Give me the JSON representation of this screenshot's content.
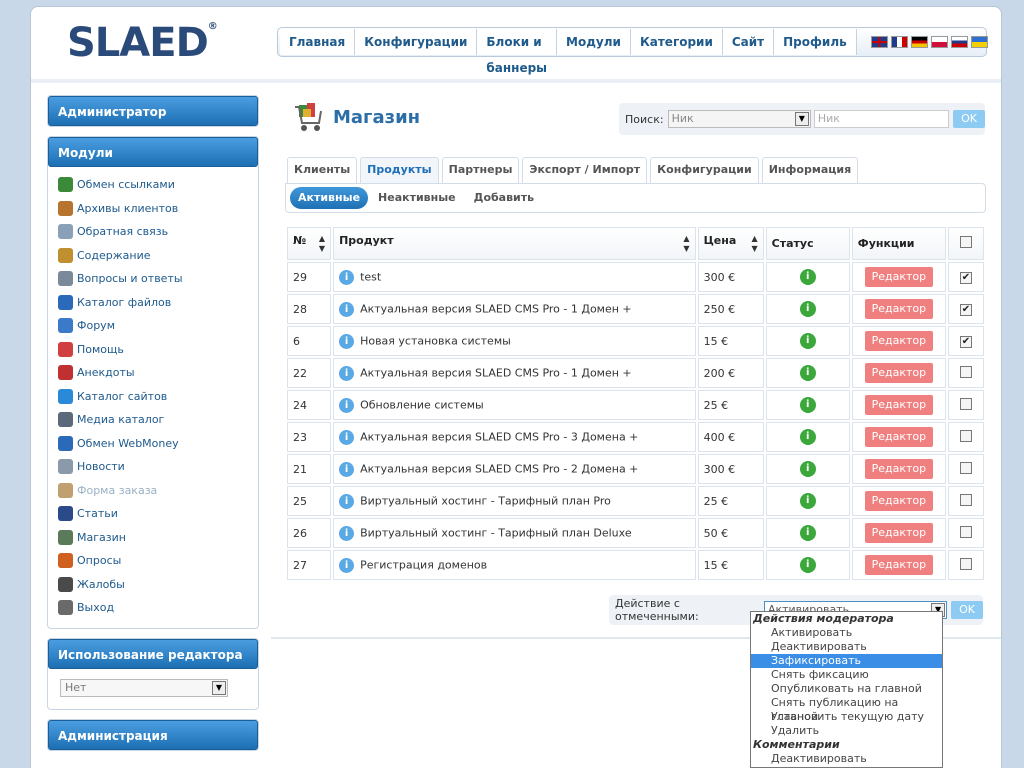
{
  "logo": {
    "text": "SLAED",
    "reg": "®"
  },
  "topnav": [
    "Главная",
    "Конфигурации",
    "Блоки и баннеры",
    "Модули",
    "Категории",
    "Сайт",
    "Профиль"
  ],
  "languages": [
    "English",
    "Français",
    "Deutsch",
    "Polski",
    "Русский",
    "Українська"
  ],
  "sidebar": {
    "admin_title": "Администратор",
    "modules_title": "Модули",
    "modules": [
      {
        "label": "Обмен ссылками",
        "icon": "globe-icon",
        "color": "#3a8a3a"
      },
      {
        "label": "Архивы клиентов",
        "icon": "archive-icon",
        "color": "#b8732e"
      },
      {
        "label": "Обратная связь",
        "icon": "mail-icon",
        "color": "#8aa0b8"
      },
      {
        "label": "Содержание",
        "icon": "book-icon",
        "color": "#c09030"
      },
      {
        "label": "Вопросы и ответы",
        "icon": "faq-icon",
        "color": "#7a8a9a"
      },
      {
        "label": "Каталог файлов",
        "icon": "disk-icon",
        "color": "#2a6ab8"
      },
      {
        "label": "Форум",
        "icon": "forum-icon",
        "color": "#3a7ac8"
      },
      {
        "label": "Помощь",
        "icon": "help-icon",
        "color": "#d04040"
      },
      {
        "label": "Анекдоты",
        "icon": "smile-icon",
        "color": "#c03030"
      },
      {
        "label": "Каталог сайтов",
        "icon": "earth-icon",
        "color": "#2a8ad8"
      },
      {
        "label": "Медиа каталог",
        "icon": "media-icon",
        "color": "#5a6a7a"
      },
      {
        "label": "Обмен WebMoney",
        "icon": "wallet-icon",
        "color": "#2a6ab8"
      },
      {
        "label": "Новости",
        "icon": "news-icon",
        "color": "#8a9aaa"
      },
      {
        "label": "Форма заказа",
        "icon": "order-icon",
        "color": "#c0a070",
        "disabled": true
      },
      {
        "label": "Статьи",
        "icon": "article-icon",
        "color": "#2a4a8a"
      },
      {
        "label": "Магазин",
        "icon": "cart-icon",
        "color": "#5a7a5a"
      },
      {
        "label": "Опросы",
        "icon": "poll-icon",
        "color": "#d06020"
      },
      {
        "label": "Жалобы",
        "icon": "user-icon",
        "color": "#4a4a4a"
      },
      {
        "label": "Выход",
        "icon": "exit-icon",
        "color": "#6a6a6a"
      }
    ],
    "editor_title": "Использование редактора",
    "editor_value": "Нет",
    "administration_title": "Администрация"
  },
  "main": {
    "title": "Магазин",
    "search_label": "Поиск:",
    "search_select": "Ник",
    "search_placeholder": "Ник",
    "search_ok": "OK",
    "tabs": [
      "Клиенты",
      "Продукты",
      "Партнеры",
      "Экспорт / Импорт",
      "Конфигурации",
      "Информация"
    ],
    "active_tab": 1,
    "subtabs": [
      "Активные",
      "Неактивные",
      "Добавить"
    ],
    "columns": [
      "№",
      "Продукт",
      "Цена",
      "Статус",
      "Функции"
    ],
    "edit_label": "Редактор",
    "rows": [
      {
        "id": "29",
        "product": "test",
        "price": "300 €",
        "checked": true
      },
      {
        "id": "28",
        "product": "Актуальная версия SLAED CMS Pro - 1 Домен +",
        "price": "250 €",
        "checked": true
      },
      {
        "id": "6",
        "product": "Новая установка системы",
        "price": "15 €",
        "checked": true
      },
      {
        "id": "22",
        "product": "Актуальная версия SLAED CMS Pro - 1 Домен +",
        "price": "200 €",
        "checked": false
      },
      {
        "id": "24",
        "product": "Обновление системы",
        "price": "25 €",
        "checked": false
      },
      {
        "id": "23",
        "product": "Актуальная версия SLAED CMS Pro - 3 Домена +",
        "price": "400 €",
        "checked": false
      },
      {
        "id": "21",
        "product": "Актуальная версия SLAED CMS Pro - 2 Домена +",
        "price": "300 €",
        "checked": false
      },
      {
        "id": "25",
        "product": "Виртуальный хостинг - Тарифный план Pro",
        "price": "25 €",
        "checked": false
      },
      {
        "id": "26",
        "product": "Виртуальный хостинг - Тарифный план Deluxe",
        "price": "50 €",
        "checked": false
      },
      {
        "id": "27",
        "product": "Регистрация доменов",
        "price": "15 €",
        "checked": false
      }
    ],
    "action_label": "Действие с отмеченными:",
    "action_value": "Активировать",
    "action_ok": "OK",
    "dropdown": [
      {
        "group": "Действия модератора"
      },
      {
        "option": "Активировать"
      },
      {
        "option": "Деактивировать"
      },
      {
        "option": "Зафиксировать",
        "selected": true
      },
      {
        "option": "Снять фиксацию"
      },
      {
        "option": "Опубликовать на главной"
      },
      {
        "option": "Снять публикацию на главной"
      },
      {
        "option": "Установить текущую дату"
      },
      {
        "option": "Удалить"
      },
      {
        "group": "Комментарии"
      },
      {
        "option": "Деактивировать"
      }
    ]
  }
}
